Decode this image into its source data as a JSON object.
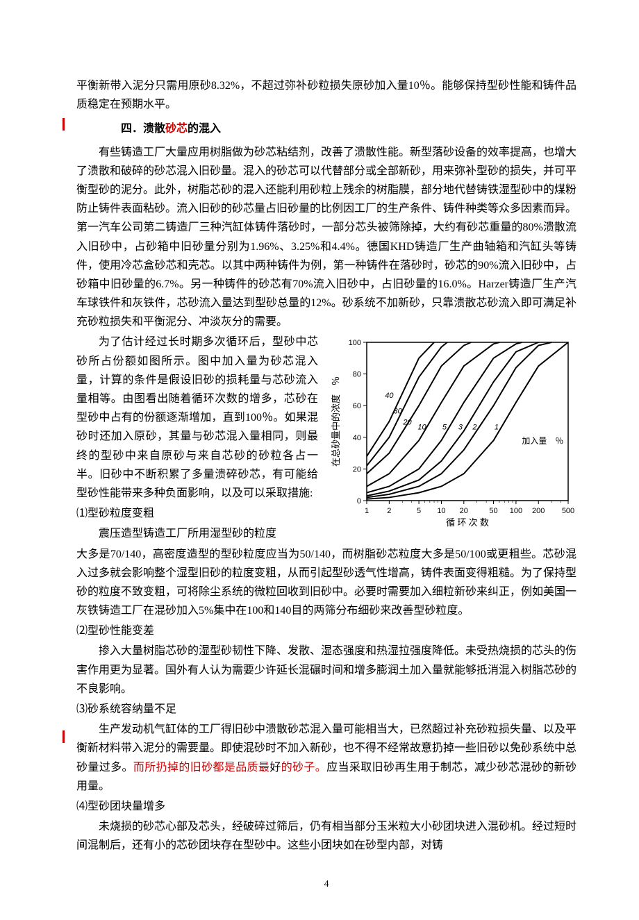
{
  "opening_para": "平衡新带入泥分只需用原砂8.32%，不超过弥补砂粒损失原砂加入量10％。能够保持型砂性能和铸件品质稳定在预期水平。",
  "heading_4_prefix": "四．溃散",
  "heading_4_red": "砂芯",
  "heading_4_suffix": "的混入",
  "section4_p1": "有些铸造工厂大量应用树脂做为砂芯粘结剂，改善了溃散性能。新型落砂设备的效率提高，也增大了溃散和破碎的砂芯混入旧砂量。混入的砂芯可以代替部分或全部新砂，用来弥补型砂的损失，并可平衡型砂的泥分。此外，树脂芯砂的混入还能利用砂粒上残余的树脂膜，部分地代替铸铁湿型砂中的煤粉防止铸件表面粘砂。流入旧砂的砂芯量占旧砂量的比例因工厂的生产条件、铸件种类等众多因素而异。第一汽车公司第二铸造厂三种汽缸体铸件落砂时，一部分芯头被筛除掉，大约有砂芯重量的80%溃散流入旧砂中，占砂箱中旧砂量分别为1.96%、3.25%和4.4%。德国KHD铸造厂生产曲轴箱和汽缸头等铸件，使用冷芯盒砂芯和壳芯。以其中两种铸件为例，第一种铸件在落砂时，砂芯的90%流入旧砂中，占砂箱中旧砂量的6.7%。另一种铸件的砂芯有70%流入旧砂中，占旧砂量的16.0%。Harzer铸造厂生产汽车球铁件和灰铁件，芯砂流入量达到型砂总量的12%。砂系统不加新砂，只靠溃散芯砂流入即可满足补充砂粒损失和平衡泥分、冲淡灰分的需要。",
  "wrap_text_1": "为了估计经过长时期多次循环后，型砂中芯砂所占份额如图所示。图中加入量为砂芯混入量，计算的条件是假设旧砂的损耗量与芯砂流入量相等。由图看出随着循环次数的增多，芯砂在型砂中占有的份额逐渐增加，直到100％。如果混砂时还加入原砂，其量与砂芯混入量相同，则最终的型砂中来自原砂与来自芯砂的砂粒各占一半。旧砂中不断积累了多量溃碎砂芯，有可能给型砂性能带来多种负面影响，以及可以采取措施:",
  "sub1_title": "⑴型砂粒度变粗",
  "sub1_p1": "震压造型铸造工厂所用湿型砂的粒度",
  "sub1_p2": "大多是70/140，高密度造型的型砂粒度应当为50/140，而树脂砂芯粒度大多是50/100或更粗些。芯砂混入过多就会影响整个湿型旧砂的粒度变粗，从而引起型砂透气性增高，铸件表面变得粗糙。为了保持型砂的粒度不致变粗，可将除尘系统的微粒回收到旧砂中。必要时需要加入细粒新砂来纠正，例如美国一灰铁铸造工厂在混砂加入5%集中在100和140目的两筛分布细砂来改善型砂粒度。",
  "sub2_title": "⑵型砂性能变差",
  "sub2_p": "掺入大量树脂芯砂的湿型砂韧性下降、发散、湿态强度和热湿拉强度降低。未受热烧损的芯头的伤害作用更为显著。国外有人认为需要少许延长混碾时间和增多膨润土加入量就能够抵消混入树脂芯砂的不良影响。",
  "sub3_title": "⑶砂系统容纳量不足",
  "sub3_p_a": "生产发动机气缸体的工厂得旧砂中溃散砂芯混入量可能相当大，已然超过补充砂粒损失量、以及平衡新材料带入泥分的需要量。即使混砂时不加入新砂，也不得不经常故意扔掉一些旧砂以免砂系统中总砂量过多。",
  "sub3_p_b": "而所扔掉的旧砂都是品质最",
  "sub3_p_c": "好",
  "sub3_p_d": "的砂子。",
  "sub3_p_e": "应当采取旧砂再生用于制芯，减少砂芯混砂的新砂用量。",
  "sub4_title": "⑷型砂团块量增多",
  "sub4_p": "未烧损的砂芯心部及芯头，经破碎过筛后，仍有相当部分玉米粒大小砂团块进入混砂机。经过短时间混制后，还有小的芯砂团块存在型砂中。这些小团块如在砂型内部，对铸",
  "page_number": "4",
  "chart": {
    "type": "line",
    "x_axis_label": "循 环 次 数",
    "y_axis_label": "在总砂量中的浓度　％",
    "inline_label": "加入量　％",
    "x_ticks": [
      1,
      2,
      5,
      10,
      20,
      50,
      100,
      200,
      500
    ],
    "y_ticks": [
      0,
      20,
      40,
      60,
      80,
      100
    ],
    "series_labels": [
      "40",
      "30",
      "20",
      "10",
      "5",
      "3",
      "2",
      "1"
    ],
    "series_colors": [
      "#000000",
      "#000000",
      "#000000",
      "#000000",
      "#000000",
      "#000000",
      "#000000",
      "#000000"
    ],
    "line_width": 2.0,
    "background_color": "#ffffff",
    "grid_color": "#000000",
    "font_size_axis": 11,
    "xlim": [
      1,
      500
    ],
    "ylim": [
      0,
      100
    ],
    "x_scale": "log",
    "y_scale": "linear",
    "curves": {
      "40": [
        [
          1,
          28
        ],
        [
          2,
          50
        ],
        [
          5,
          90
        ],
        [
          8,
          100
        ]
      ],
      "30": [
        [
          1,
          22
        ],
        [
          2,
          40
        ],
        [
          5,
          78
        ],
        [
          10,
          97
        ],
        [
          12,
          100
        ]
      ],
      "20": [
        [
          1,
          17
        ],
        [
          2,
          30
        ],
        [
          5,
          60
        ],
        [
          10,
          85
        ],
        [
          20,
          98
        ],
        [
          25,
          100
        ]
      ],
      "10": [
        [
          1,
          9
        ],
        [
          2,
          17
        ],
        [
          5,
          38
        ],
        [
          10,
          62
        ],
        [
          20,
          85
        ],
        [
          50,
          99
        ],
        [
          60,
          100
        ]
      ],
      "5": [
        [
          1,
          5
        ],
        [
          2,
          9
        ],
        [
          5,
          20
        ],
        [
          10,
          38
        ],
        [
          20,
          62
        ],
        [
          50,
          90
        ],
        [
          100,
          99
        ],
        [
          120,
          100
        ]
      ],
      "3": [
        [
          1,
          3
        ],
        [
          2,
          6
        ],
        [
          5,
          13
        ],
        [
          10,
          25
        ],
        [
          20,
          44
        ],
        [
          50,
          75
        ],
        [
          100,
          94
        ],
        [
          200,
          100
        ]
      ],
      "2": [
        [
          1,
          2
        ],
        [
          2,
          4
        ],
        [
          5,
          9
        ],
        [
          10,
          17
        ],
        [
          20,
          32
        ],
        [
          50,
          60
        ],
        [
          100,
          84
        ],
        [
          200,
          98
        ],
        [
          300,
          100
        ]
      ],
      "1": [
        [
          1,
          1
        ],
        [
          2,
          2
        ],
        [
          5,
          5
        ],
        [
          10,
          9
        ],
        [
          20,
          17
        ],
        [
          50,
          38
        ],
        [
          100,
          62
        ],
        [
          200,
          85
        ],
        [
          500,
          100
        ]
      ]
    }
  }
}
